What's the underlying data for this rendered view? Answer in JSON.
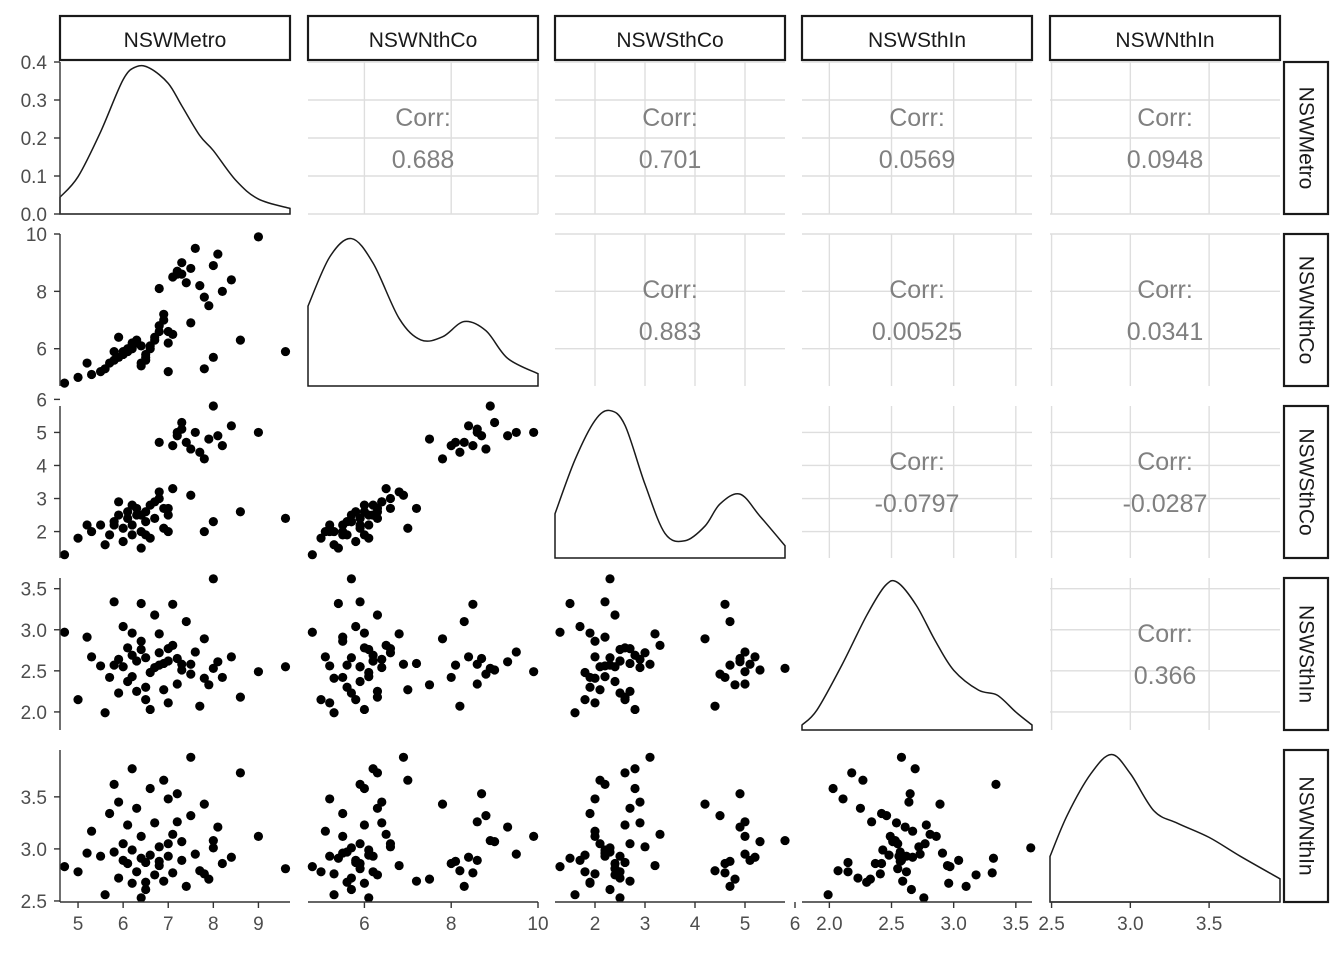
{
  "chart_data": {
    "type": "scatter",
    "variables": [
      "NSWMetro",
      "NSWNthCo",
      "NSWSthCo",
      "NSWSthIn",
      "NSWNthIn"
    ],
    "corr_label": "Corr:",
    "correlations": [
      {
        "row": 0,
        "col": 1,
        "value": "0.688"
      },
      {
        "row": 0,
        "col": 2,
        "value": "0.701"
      },
      {
        "row": 0,
        "col": 3,
        "value": "0.0569"
      },
      {
        "row": 0,
        "col": 4,
        "value": "0.0948"
      },
      {
        "row": 1,
        "col": 2,
        "value": "0.883"
      },
      {
        "row": 1,
        "col": 3,
        "value": "0.00525"
      },
      {
        "row": 1,
        "col": 4,
        "value": "0.0341"
      },
      {
        "row": 2,
        "col": 3,
        "value": "-0.0797"
      },
      {
        "row": 2,
        "col": 4,
        "value": "-0.0287"
      },
      {
        "row": 3,
        "col": 4,
        "value": "0.366"
      }
    ],
    "axes": [
      {
        "name": "NSWMetro",
        "range": [
          4.6,
          9.7
        ],
        "ticks": [
          5,
          6,
          7,
          8,
          9
        ]
      },
      {
        "name": "NSWNthCo",
        "range": [
          4.7,
          10.0
        ],
        "ticks": [
          6,
          8,
          10
        ]
      },
      {
        "name": "NSWSthCo",
        "range": [
          1.2,
          5.8
        ],
        "ticks": [
          2,
          3,
          4,
          5,
          6
        ]
      },
      {
        "name": "NSWSthIn",
        "range": [
          1.78,
          3.63
        ],
        "ticks": [
          2.0,
          2.5,
          3.0,
          3.5
        ],
        "tick_labels": [
          "2.0",
          "2.5",
          "3.0",
          "3.5"
        ]
      },
      {
        "name": "NSWNthIn",
        "range": [
          2.49,
          3.95
        ],
        "ticks": [
          2.5,
          3.0,
          3.5
        ],
        "tick_labels": [
          "2.5",
          "3.0",
          "3.5"
        ]
      }
    ],
    "density_y_axis": {
      "range": [
        0,
        0.4
      ],
      "ticks": [
        0.0,
        0.1,
        0.2,
        0.3,
        0.4
      ],
      "tick_labels": [
        "0.0",
        "0.1",
        "0.2",
        "0.3",
        "0.4"
      ]
    },
    "densities": [
      {
        "name": "NSWMetro",
        "x": [
          4.6,
          5.0,
          5.5,
          6.0,
          6.3,
          6.6,
          7.0,
          7.3,
          7.7,
          8.0,
          8.5,
          9.0,
          9.7
        ],
        "y": [
          0.045,
          0.1,
          0.22,
          0.36,
          0.395,
          0.39,
          0.35,
          0.29,
          0.21,
          0.17,
          0.09,
          0.04,
          0.015
        ]
      },
      {
        "name": "NSWNthCo",
        "x": [
          4.7,
          5.2,
          5.7,
          6.2,
          6.8,
          7.3,
          7.8,
          8.3,
          8.8,
          9.3,
          10.0
        ],
        "y": [
          0.26,
          0.42,
          0.48,
          0.4,
          0.22,
          0.15,
          0.16,
          0.21,
          0.18,
          0.09,
          0.04
        ]
      },
      {
        "name": "NSWSthCo",
        "x": [
          1.2,
          1.6,
          2.0,
          2.3,
          2.6,
          3.0,
          3.4,
          3.8,
          4.2,
          4.5,
          4.9,
          5.3,
          5.8
        ],
        "y": [
          0.18,
          0.4,
          0.56,
          0.6,
          0.54,
          0.3,
          0.1,
          0.07,
          0.13,
          0.22,
          0.26,
          0.17,
          0.05
        ]
      },
      {
        "name": "NSWSthIn",
        "x": [
          1.78,
          1.9,
          2.1,
          2.3,
          2.45,
          2.55,
          2.7,
          2.85,
          3.0,
          3.2,
          3.35,
          3.5,
          3.63
        ],
        "y": [
          0.05,
          0.2,
          0.65,
          1.15,
          1.45,
          1.48,
          1.25,
          0.9,
          0.6,
          0.4,
          0.35,
          0.18,
          0.05
        ]
      },
      {
        "name": "NSWNthIn",
        "x": [
          2.49,
          2.6,
          2.75,
          2.88,
          3.0,
          3.15,
          3.3,
          3.5,
          3.7,
          3.95
        ],
        "y": [
          0.55,
          1.05,
          1.55,
          1.78,
          1.55,
          1.1,
          0.95,
          0.78,
          0.55,
          0.28
        ]
      }
    ],
    "points": {
      "NSWMetro": [
        4.7,
        5.0,
        5.3,
        5.5,
        5.6,
        5.7,
        5.8,
        5.9,
        6.0,
        6.0,
        6.1,
        6.1,
        6.2,
        6.2,
        6.3,
        6.3,
        6.4,
        6.4,
        6.5,
        6.5,
        6.6,
        6.6,
        6.7,
        6.7,
        6.8,
        6.8,
        6.9,
        6.9,
        7.0,
        7.0,
        7.1,
        7.1,
        7.2,
        7.3,
        7.3,
        7.4,
        7.5,
        7.6,
        7.7,
        7.8,
        7.9,
        8.0,
        8.1,
        8.2,
        8.4,
        8.6,
        9.0,
        9.6,
        5.2,
        5.9,
        6.5,
        7.0,
        7.5,
        7.8,
        8.0,
        6.2,
        6.8,
        7.2,
        5.8,
        6.4
      ],
      "NSWNthCo": [
        4.8,
        5.0,
        5.1,
        5.2,
        5.3,
        5.5,
        5.6,
        5.7,
        5.8,
        5.9,
        5.9,
        6.0,
        6.0,
        6.1,
        6.2,
        6.3,
        5.4,
        5.5,
        5.7,
        5.8,
        6.0,
        6.1,
        6.3,
        6.4,
        6.6,
        6.8,
        7.0,
        7.2,
        5.2,
        6.2,
        6.5,
        8.5,
        8.7,
        8.6,
        9.0,
        8.3,
        8.8,
        9.5,
        8.2,
        7.8,
        7.5,
        8.9,
        9.3,
        8.0,
        8.4,
        6.3,
        9.9,
        5.9,
        5.5,
        6.4,
        5.6,
        6.6,
        6.9,
        5.3,
        5.7,
        6.2,
        8.1,
        8.6,
        5.9,
        6.1
      ],
      "NSWSthCo": [
        1.3,
        1.8,
        2.0,
        2.2,
        1.6,
        1.9,
        2.3,
        2.5,
        1.7,
        2.1,
        2.4,
        2.6,
        1.9,
        2.2,
        2.5,
        2.7,
        1.5,
        2.0,
        2.3,
        2.6,
        2.8,
        1.8,
        2.4,
        2.9,
        3.0,
        3.2,
        2.1,
        2.7,
        2.0,
        2.5,
        3.3,
        4.6,
        4.9,
        5.1,
        5.3,
        4.7,
        4.5,
        5.0,
        4.4,
        4.2,
        4.8,
        5.8,
        4.9,
        4.6,
        5.2,
        2.6,
        5.0,
        2.4,
        2.2,
        2.9,
        1.9,
        2.7,
        3.1,
        2.0,
        2.3,
        2.8,
        4.7,
        5.0,
        2.2,
        2.5
      ],
      "NSWSthIn": [
        2.97,
        2.15,
        2.67,
        2.56,
        1.99,
        2.42,
        2.57,
        2.23,
        3.04,
        2.55,
        2.37,
        2.78,
        2.96,
        2.43,
        2.62,
        2.25,
        3.32,
        2.86,
        2.66,
        2.15,
        2.03,
        2.48,
        3.18,
        2.54,
        2.72,
        2.95,
        2.27,
        2.59,
        2.11,
        2.62,
        2.81,
        3.31,
        2.65,
        2.58,
        2.51,
        3.1,
        2.46,
        2.73,
        2.07,
        2.89,
        2.33,
        2.53,
        2.61,
        2.42,
        2.67,
        2.18,
        2.49,
        2.55,
        2.91,
        2.64,
        2.3,
        2.77,
        2.58,
        2.41,
        3.62,
        2.69,
        2.57,
        2.34,
        3.34,
        2.76
      ],
      "NSWNthIn": [
        2.83,
        2.78,
        3.17,
        2.93,
        2.56,
        3.34,
        2.97,
        2.72,
        2.89,
        3.05,
        2.86,
        3.23,
        2.67,
        2.99,
        2.78,
        3.39,
        2.91,
        3.12,
        2.61,
        2.87,
        3.58,
        2.94,
        2.75,
        3.25,
        3.02,
        2.84,
        3.66,
        2.69,
        3.48,
        2.93,
        3.14,
        2.77,
        3.53,
        2.89,
        3.07,
        2.64,
        3.32,
        2.95,
        2.79,
        3.43,
        2.71,
        3.08,
        3.21,
        2.86,
        2.92,
        3.73,
        3.12,
        2.81,
        2.96,
        3.45,
        2.68,
        3.05,
        3.88,
        2.76,
        3.01,
        3.77,
        2.88,
        3.26,
        3.62,
        2.53
      ]
    }
  }
}
